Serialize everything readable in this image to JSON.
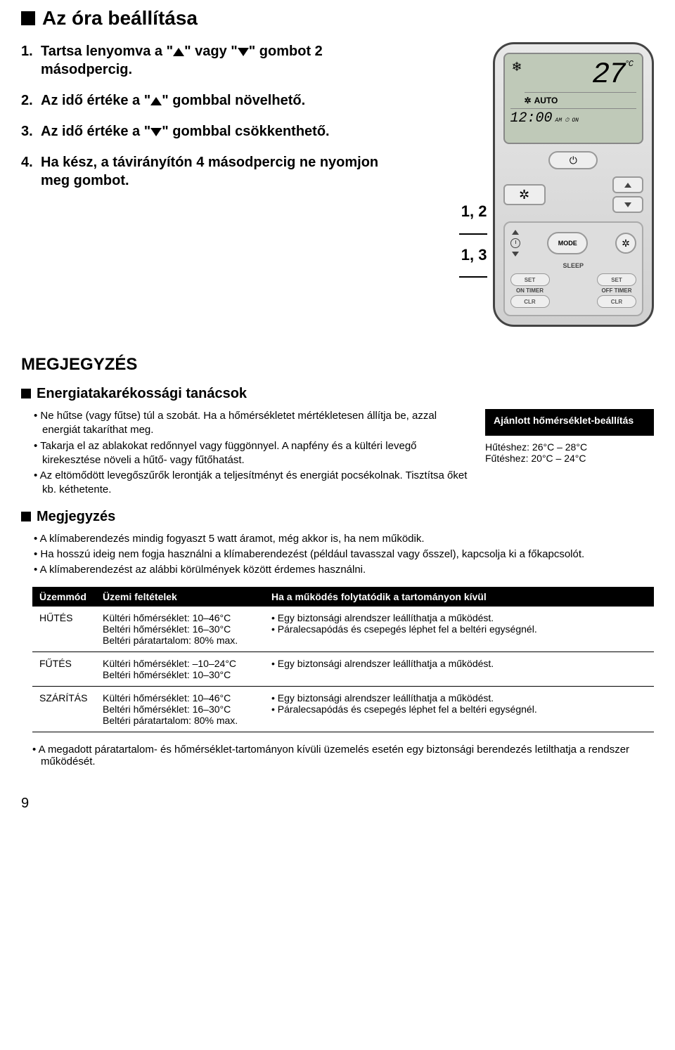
{
  "header": {
    "title": "Az óra beállítása"
  },
  "steps": [
    {
      "num": "1.",
      "pre": "Tartsa lenyomva a \"",
      "icon1": "up",
      "mid": "\" vagy \"",
      "icon2": "down",
      "post": "\" gombot 2 másodpercig."
    },
    {
      "num": "2.",
      "pre": "Az idő értéke a \"",
      "icon1": "up",
      "post": "\" gombbal növelhető."
    },
    {
      "num": "3.",
      "pre": "Az idő értéke a \"",
      "icon1": "down",
      "post": "\" gombbal csökkenthető."
    },
    {
      "num": "4.",
      "pre": "Ha kész, a távirányítón 4 másodpercig ne nyomjon meg gombot."
    }
  ],
  "callouts": {
    "a": "1, 2",
    "b": "1, 3"
  },
  "remote": {
    "temp": "27",
    "unit": "°C",
    "auto": "AUTO",
    "time": "12:00",
    "am": "AM",
    "on": "ON",
    "mode": "MODE",
    "sleep": "SLEEP",
    "set": "SET",
    "on_timer": "ON TIMER",
    "off_timer": "OFF TIMER",
    "clr": "CLR"
  },
  "notes": {
    "title": "MEGJEGYZÉS",
    "energy_title": "Energiatakarékossági tanácsok",
    "energy_tips": [
      "Ne hűtse (vagy fűtse) túl a szobát. Ha a hőmérsékletet mértékletesen állítja be, azzal energiát takaríthat meg.",
      "Takarja el az ablakokat redőnnyel vagy függönnyel. A napfény és a kültéri levegő kirekesztése növeli a hűtő- vagy fűtőhatást.",
      "Az eltömődött levegőszűrők lerontják a teljesítményt és energiát pocsékolnak. Tisztítsa őket kb. kéthetente."
    ],
    "reco_title": "Ajánlott hőmérséklet-beállítás",
    "reco_lines": [
      "Hűtéshez: 26°C – 28°C",
      "Fűtéshez: 20°C – 24°C"
    ],
    "note_title": "Megjegyzés",
    "note_items": [
      "A klímaberendezés mindig fogyaszt 5 watt áramot, még akkor is, ha nem működik.",
      "Ha hosszú ideig nem fogja használni a klímaberendezést (például tavasszal vagy ősszel), kapcsolja ki a főkapcsolót.",
      "A klímaberendezést az alábbi körülmények között érdemes használni."
    ]
  },
  "table": {
    "headers": [
      "Üzemmód",
      "Üzemi feltételek",
      "Ha a működés folytatódik a tartományon kívül"
    ],
    "rows": [
      {
        "mode": "HŰTÉS",
        "cond": "Kültéri hőmérséklet: 10–46°C\nBeltéri hőmérséklet: 16–30°C\nBeltéri páratartalom: 80% max.",
        "effects": [
          "Egy biztonsági alrendszer leállíthatja a működést.",
          "Páralecsapódás és csepegés léphet fel a beltéri egységnél."
        ]
      },
      {
        "mode": "FŰTÉS",
        "cond": "Kültéri hőmérséklet: –10–24°C\nBeltéri hőmérséklet: 10–30°C",
        "effects": [
          "Egy biztonsági alrendszer leállíthatja a működést."
        ]
      },
      {
        "mode": "SZÁRÍTÁS",
        "cond": "Kültéri hőmérséklet: 10–46°C\nBeltéri hőmérséklet: 16–30°C\nBeltéri páratartalom: 80% max.",
        "effects": [
          "Egy biztonsági alrendszer leállíthatja a működést.",
          "Páralecsapódás és csepegés léphet fel a beltéri egységnél."
        ]
      }
    ]
  },
  "footer_note": "A megadott páratartalom- és hőmérséklet-tartományon kívüli üzemelés esetén egy biztonsági berendezés letilthatja a rendszer működését.",
  "page_number": "9",
  "colors": {
    "bg": "#ffffff",
    "text": "#000000",
    "remote_bg": "#d0d0d0",
    "lcd": "#bfc9b8"
  }
}
